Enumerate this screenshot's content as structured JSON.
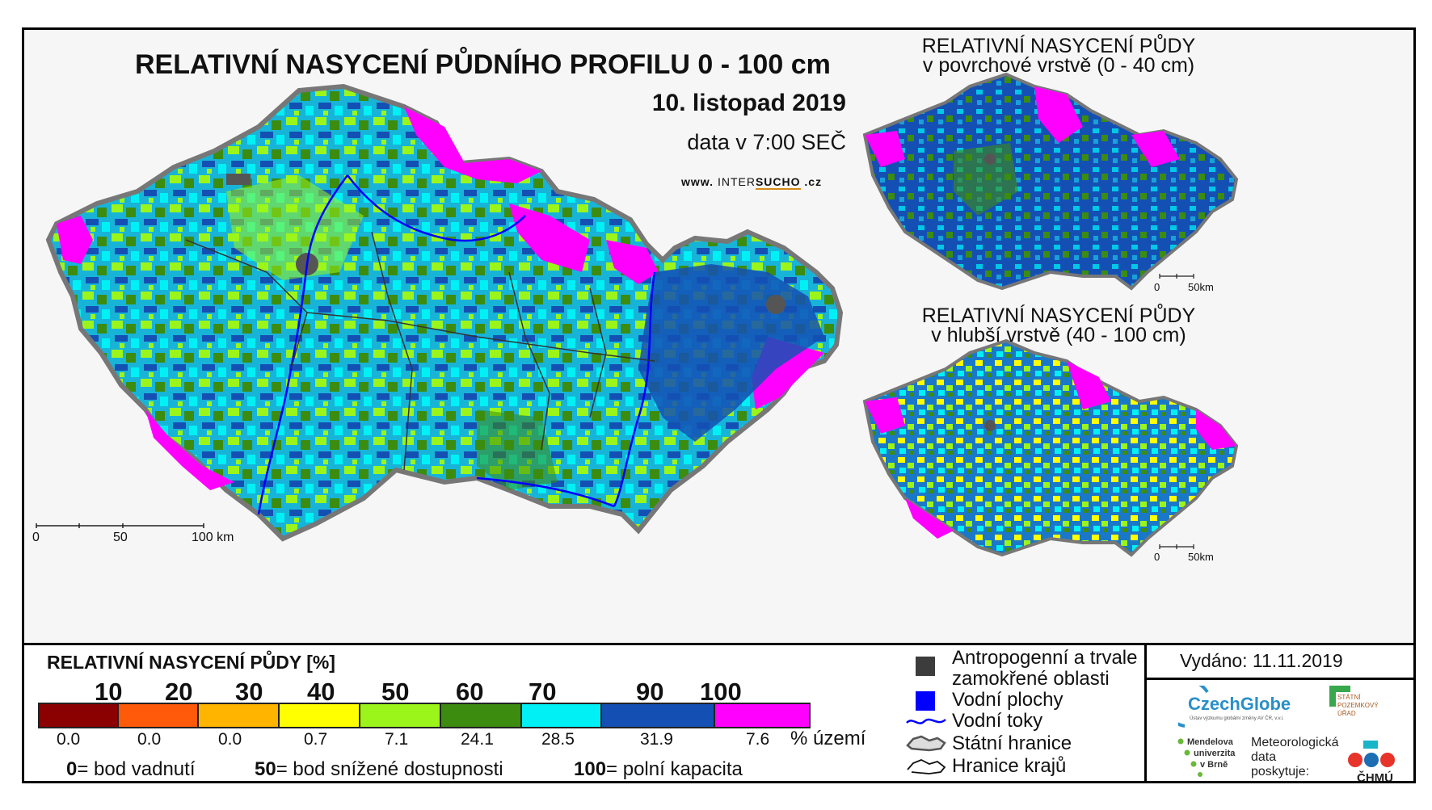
{
  "main": {
    "title": "RELATIVNÍ NASYCENÍ PŮDNÍHO PROFILU 0 - 100 cm",
    "date": "10. listopad 2019",
    "time": "data v 7:00 SEČ",
    "website_prefix": "www.",
    "website_brand_a": "INTER",
    "website_brand_b": "SUCHO",
    "website_suffix": ".cz",
    "scale_labels": [
      "0",
      "50",
      "100 km"
    ]
  },
  "inset_top": {
    "title_line1": "RELATIVNÍ NASYCENÍ PŮDY",
    "title_line2": "v povrchové vrstvě (0 - 40 cm)",
    "scale_labels": [
      "0",
      "50km"
    ]
  },
  "inset_bottom": {
    "title_line1": "RELATIVNÍ NASYCENÍ PŮDY",
    "title_line2": "v hlubší vrstvě (40 - 100 cm)",
    "scale_labels": [
      "0",
      "50km"
    ]
  },
  "legend": {
    "title": "RELATIVNÍ NASYCENÍ PŮDY [%]",
    "ticks": [
      "10",
      "20",
      "30",
      "40",
      "50",
      "60",
      "70",
      "90",
      "100"
    ],
    "classes": [
      {
        "color": "#8b0000",
        "percent": "0.0"
      },
      {
        "color": "#ff5a0a",
        "percent": "0.0"
      },
      {
        "color": "#ffb400",
        "percent": "0.0"
      },
      {
        "color": "#ffff00",
        "percent": "0.7"
      },
      {
        "color": "#9cf51a",
        "percent": "7.1"
      },
      {
        "color": "#3c8c10",
        "percent": "24.1"
      },
      {
        "color": "#00f0f5",
        "percent": "28.5"
      },
      {
        "color": "#1450b4",
        "percent": "31.9"
      },
      {
        "color": "#ff00ff",
        "percent": "7.6"
      }
    ],
    "unit_label": "% území",
    "note1_value": "0",
    "note1_text": "= bod vadnutí",
    "note2_value": "50",
    "note2_text": "= bod snížené dostupnosti",
    "note3_value": "100",
    "note3_text": "= polní kapacita"
  },
  "key": {
    "anthropogenic_line1": "Antropogenní a trvale",
    "anthropogenic_line2": "zamokřené oblasti",
    "water_bodies": "Vodní plochy",
    "rivers": "Vodní toky",
    "state_border": "Státní hranice",
    "regional_border": "Hranice krajů",
    "colors": {
      "anthropogenic": "#3c3c3c",
      "water": "#0000ff",
      "river": "#0000ff"
    }
  },
  "footer": {
    "issued": "Vydáno: 11.11.2019",
    "czechglobe": "CzechGlobe",
    "czechglobe_sub": "Ústav výzkumu globální změny AV ČR, v.v.i.",
    "spu_lines": [
      "STÁTNÍ",
      "POZEMKOVÝ",
      "ÚŘAD"
    ],
    "mendel_lines": [
      "Mendelova",
      "univerzita",
      "v Brně"
    ],
    "meteo_lines": [
      "Meteorologická",
      "data",
      "poskytuje:"
    ],
    "chmu": "ČHMÚ"
  }
}
